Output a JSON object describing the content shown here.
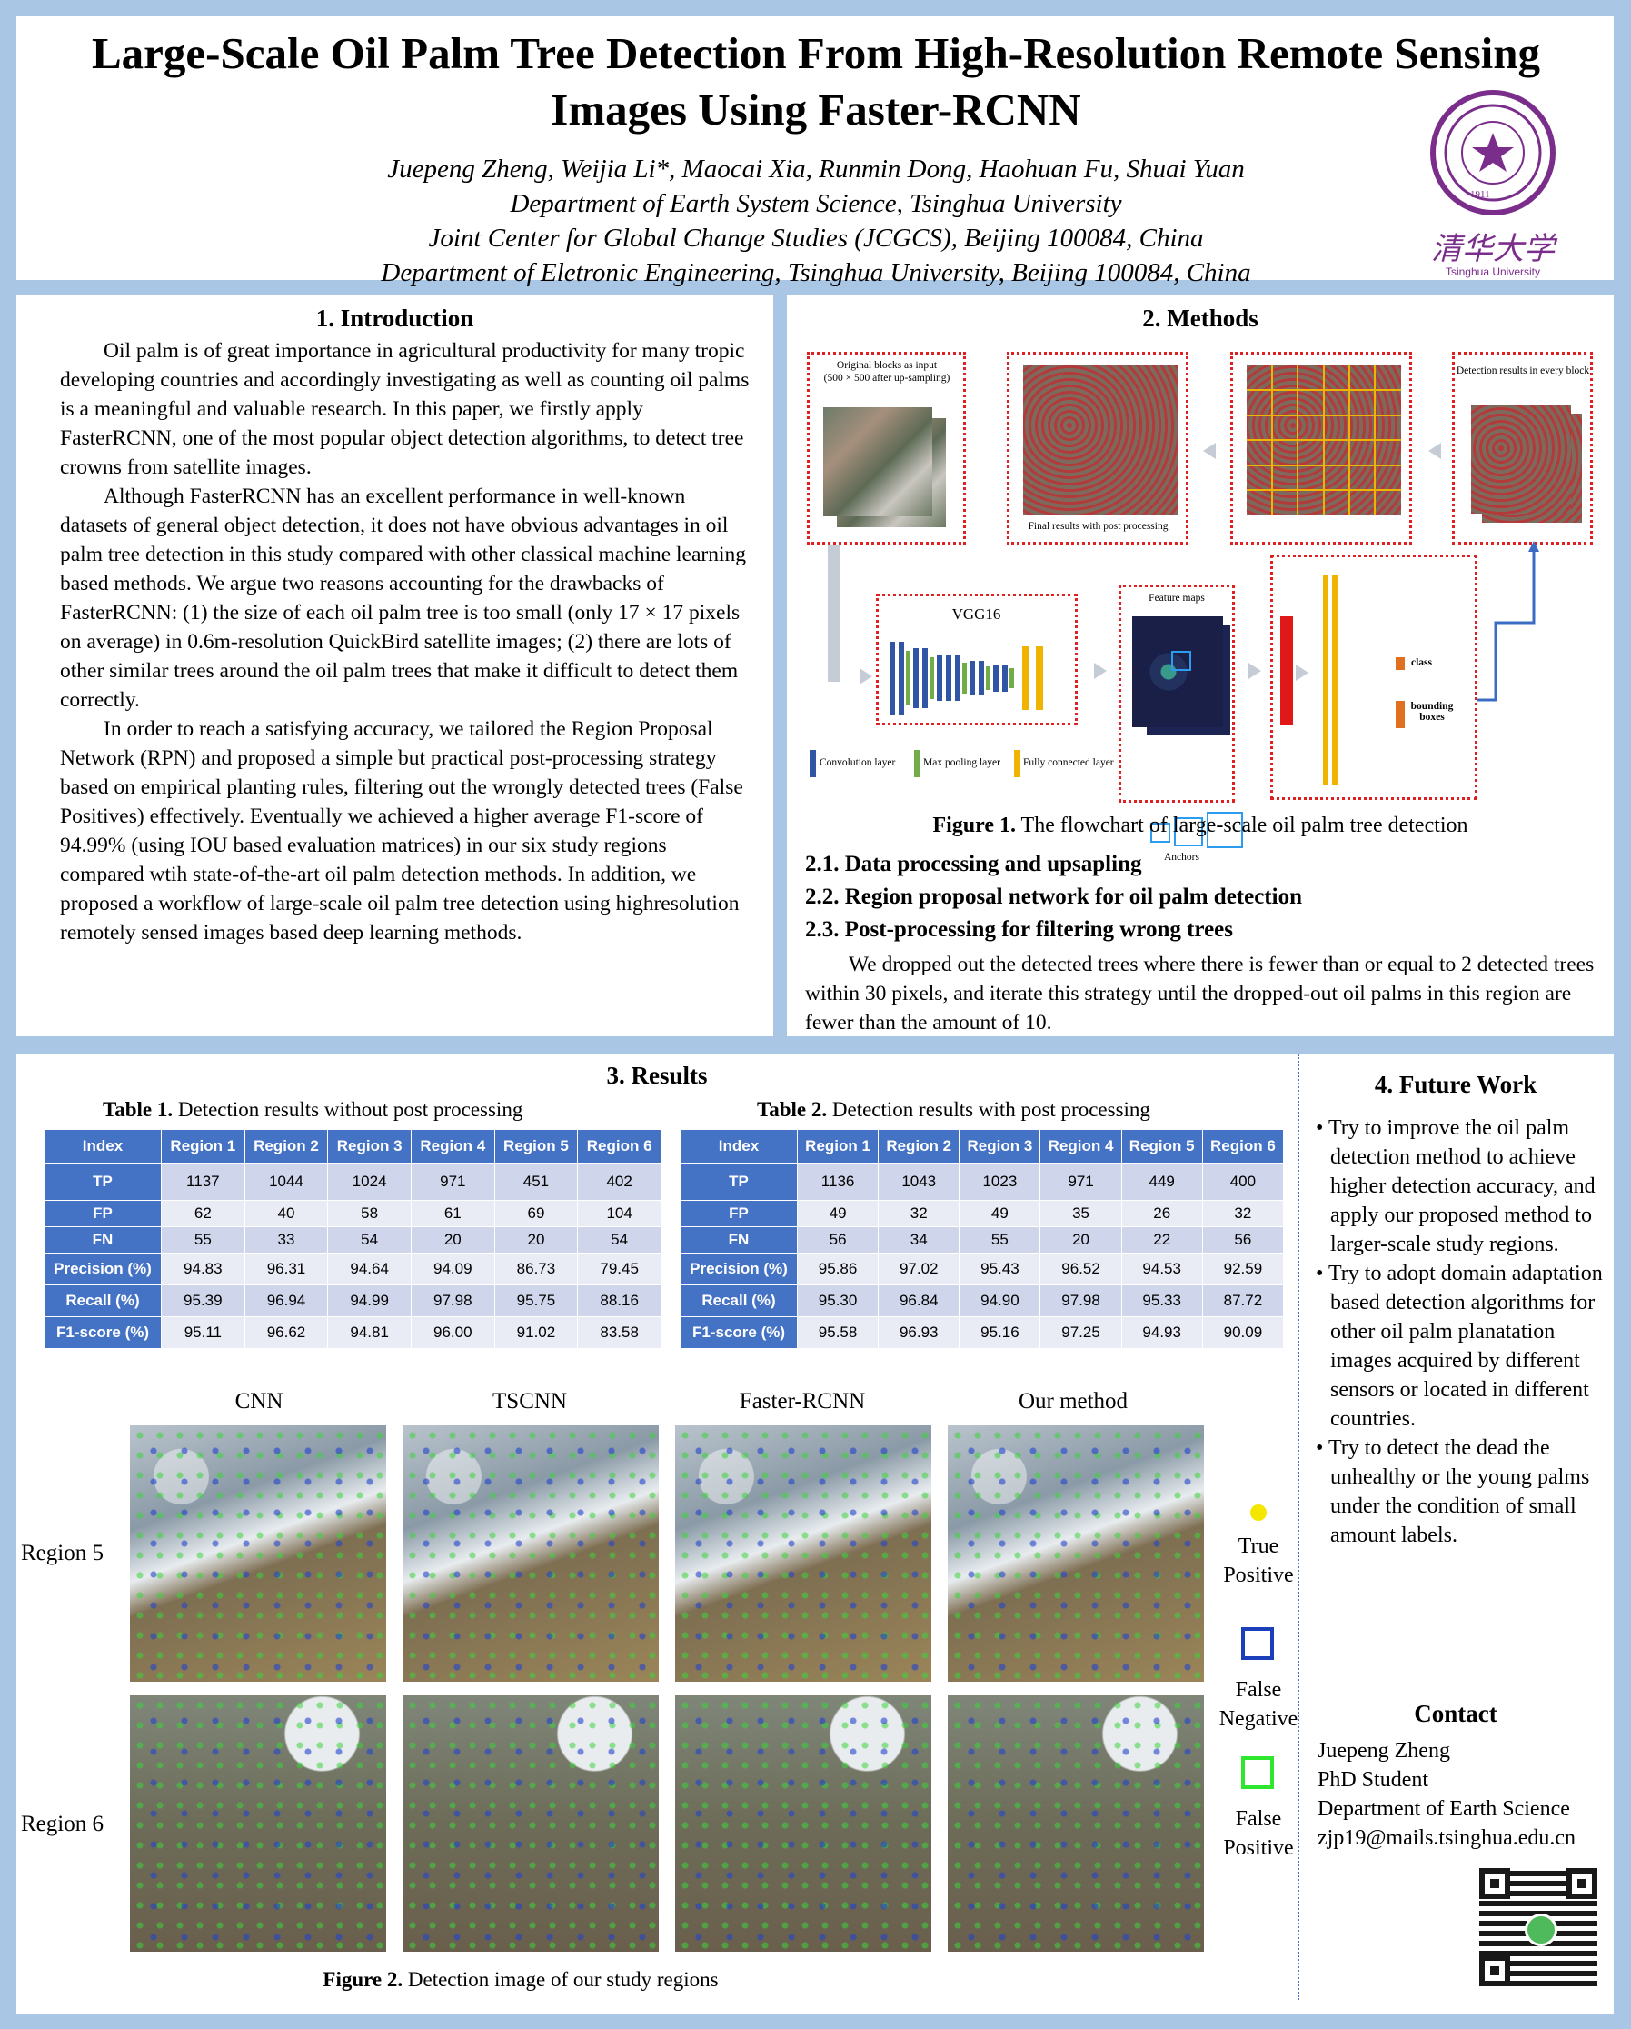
{
  "header": {
    "title": "Large-Scale Oil Palm Tree Detection From High-Resolution Remote Sensing Images Using Faster-RCNN",
    "authors": "Juepeng Zheng, Weijia Li*, Maocai Xia, Runmin Dong, Haohuan Fu, Shuai Yuan",
    "affiliation1": "Department of  Earth System Science, Tsinghua University",
    "affiliation2": "Joint Center for Global Change Studies (JCGCS), Beijing 100084, China",
    "affiliation3": "Department of Eletronic Engineering, Tsinghua University, Beijing 100084, China",
    "logo_text": "Tsinghua University",
    "logo_chinese": "清华大学",
    "logo_year": "1911"
  },
  "intro": {
    "title": "1. Introduction",
    "p1": "Oil palm is of great importance in agricultural productivity for many tropic developing countries and accordingly investigating  as well as counting oil palms is a meaningful and valuable research. In this paper, we firstly apply FasterRCNN, one of the most popular object detection algorithms, to detect tree crowns from satellite images.",
    "p2": "Although FasterRCNN has an excellent performance in well-known datasets of general object detection, it does not have obvious advantages in oil palm tree detection in this study compared with other classical machine learning based methods. We argue two reasons accounting for the drawbacks of FasterRCNN: (1) the size of each oil palm tree is too small (only 17 × 17 pixels on average) in 0.6m-resolution QuickBird satellite images;  (2) there are lots of other similar trees around the oil palm trees that make it difficult to detect them correctly.",
    "p3": "In order to reach a satisfying  accuracy, we tailored the Region Proposal Network (RPN) and proposed a simple but practical post-processing strategy based on empirical planting rules, filtering out the wrongly detected trees (False Positives) effectively.  Eventually we achieved a higher average F1-score of 94.99% (using IOU based evaluation matrices) in our six study regions compared wtih state-of-the-art oil palm detection methods. In addition, we proposed a workflow of large-scale oil palm tree detection using highresolution remotely sensed images  based deep learning methods."
  },
  "methods": {
    "title": "2. Methods",
    "diagram": {
      "input_label": "Original  blocks as input",
      "input_sub": "(500 × 500 after up-sampling)",
      "final_label": "Final results with post processing",
      "detect_label": "Detection results in every block",
      "vgg_label": "VGG16",
      "feature_label": "Feature maps",
      "anchors_label": "Anchors",
      "anchors_dots": "...",
      "legend_conv": "Convolution layer",
      "legend_pool": "Max pooling layer",
      "legend_fc": "Fully connected layer",
      "class_label": "class",
      "bbox_label": "bounding boxes"
    },
    "fig_caption_bold": "Figure 1.",
    "fig_caption": " The flowchart of large-scale oil palm tree detection",
    "sub1": "2.1. Data processing  and upsapling",
    "sub2": "2.2. Region  proposal  network  for oil palm  detection",
    "sub3": "2.3. Post-processing  for filtering wrong  trees",
    "text": "We dropped out  the detected trees where there is fewer than or equal to 2 detected trees within 30 pixels, and iterate this strategy until the dropped-out oil palms in this region are fewer than the amount of 10."
  },
  "results": {
    "title": "3. Results",
    "table1_caption_bold": "Table 1.",
    "table1_caption": " Detection results without post processing",
    "table2_caption_bold": "Table 2.",
    "table2_caption": " Detection results with post processing",
    "columns": [
      "Index",
      "Region 1",
      "Region 2",
      "Region 3",
      "Region 4",
      "Region 5",
      "Region 6"
    ],
    "table1": [
      [
        "TP",
        "1137",
        "1044",
        "1024",
        "971",
        "451",
        "402"
      ],
      [
        "FP",
        "62",
        "40",
        "58",
        "61",
        "69",
        "104"
      ],
      [
        "FN",
        "55",
        "33",
        "54",
        "20",
        "20",
        "54"
      ],
      [
        "Precision (%)",
        "94.83",
        "96.31",
        "94.64",
        "94.09",
        "86.73",
        "79.45"
      ],
      [
        "Recall (%)",
        "95.39",
        "96.94",
        "94.99",
        "97.98",
        "95.75",
        "88.16"
      ],
      [
        "F1-score (%)",
        "95.11",
        "96.62",
        "94.81",
        "96.00",
        "91.02",
        "83.58"
      ]
    ],
    "table2": [
      [
        "TP",
        "1136",
        "1043",
        "1023",
        "971",
        "449",
        "400"
      ],
      [
        "FP",
        "49",
        "32",
        "49",
        "35",
        "26",
        "32"
      ],
      [
        "FN",
        "56",
        "34",
        "55",
        "20",
        "22",
        "56"
      ],
      [
        "Precision (%)",
        "95.86",
        "97.02",
        "95.43",
        "96.52",
        "94.53",
        "92.59"
      ],
      [
        "Recall (%)",
        "95.30",
        "96.84",
        "94.90",
        "97.98",
        "95.33",
        "87.72"
      ],
      [
        "F1-score (%)",
        "95.58",
        "96.93",
        "95.16",
        "97.25",
        "94.93",
        "90.09"
      ]
    ],
    "methods_cols": [
      "CNN",
      "TSCNN",
      "Faster-RCNN",
      "Our method"
    ],
    "region_rows": [
      "Region 5",
      "Region 6"
    ],
    "legend": {
      "tp": "True Positive",
      "fn": "False Negative",
      "fp": "False Positive",
      "tp_color": "#f5e600",
      "fn_color": "#1a3fb8",
      "fp_color": "#2ee62e"
    },
    "fig2_caption_bold": "Figure 2.",
    "fig2_caption": " Detection image  of our study regions"
  },
  "future": {
    "title": "4. Future Work",
    "items": [
      "Try to improve the oil palm detection method to achieve higher detection accuracy, and apply our proposed method to larger-scale study regions.",
      "Try to adopt domain adaptation based detection algorithms for other oil palm planatation images acquired by different sensors or located in different countries.",
      "Try to detect the dead the unhealthy or the young palms under the condition of small amount labels."
    ],
    "contact_title": "Contact",
    "contact_name": "Juepeng Zheng",
    "contact_role": "PhD Student",
    "contact_dept": "Department of Earth Science",
    "contact_email": "zjp19@mails.tsinghua.edu.cn"
  }
}
